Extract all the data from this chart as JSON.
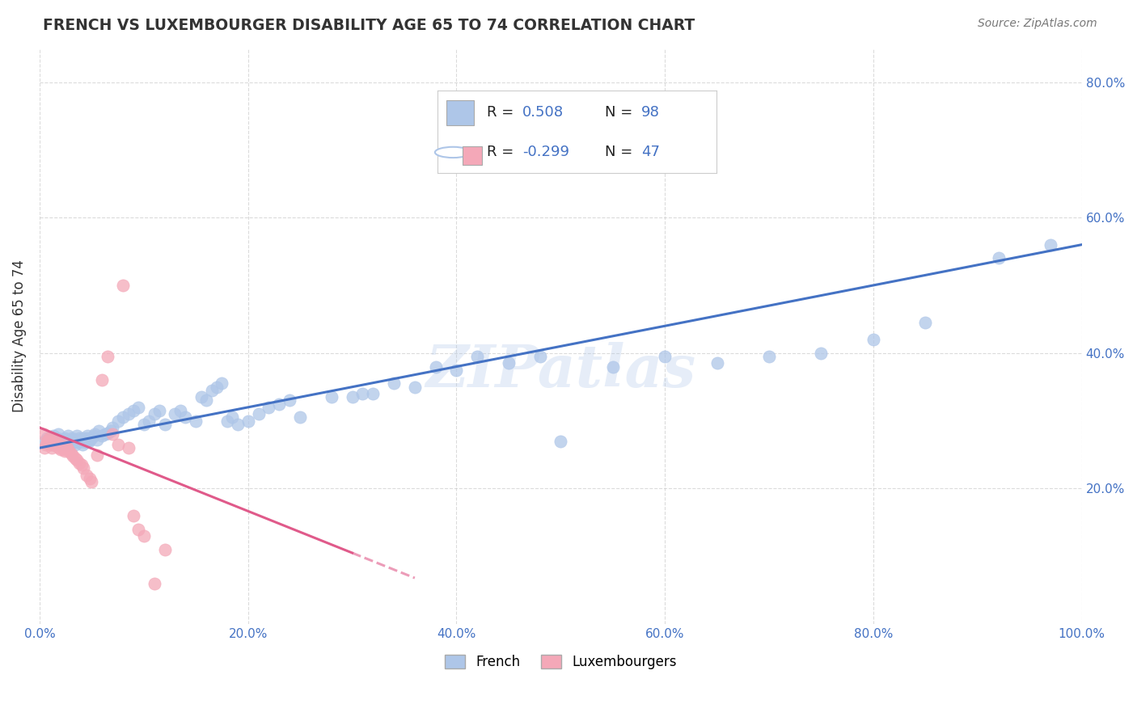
{
  "title": "FRENCH VS LUXEMBOURGER DISABILITY AGE 65 TO 74 CORRELATION CHART",
  "source": "Source: ZipAtlas.com",
  "ylabel": "Disability Age 65 to 74",
  "french_R": 0.508,
  "french_N": 98,
  "lux_R": -0.299,
  "lux_N": 47,
  "xlim": [
    0.0,
    1.0
  ],
  "ylim": [
    0.0,
    0.85
  ],
  "xticks": [
    0.0,
    0.2,
    0.4,
    0.6,
    0.8,
    1.0
  ],
  "yticks": [
    0.2,
    0.4,
    0.6,
    0.8
  ],
  "xticklabels": [
    "0.0%",
    "20.0%",
    "40.0%",
    "60.0%",
    "80.0%",
    "100.0%"
  ],
  "yticklabels_right": [
    "20.0%",
    "40.0%",
    "60.0%",
    "80.0%"
  ],
  "french_color": "#aec6e8",
  "lux_color": "#f4a8b8",
  "lux_circle_edge": "#aec6e8",
  "french_line_color": "#4472c4",
  "lux_line_color": "#e05a8a",
  "background_color": "#ffffff",
  "grid_color": "#cccccc",
  "watermark": "ZIPatlas",
  "tick_color": "#4472c4",
  "french_scatter_x": [
    0.005,
    0.007,
    0.009,
    0.01,
    0.012,
    0.013,
    0.015,
    0.016,
    0.017,
    0.018,
    0.019,
    0.02,
    0.022,
    0.023,
    0.024,
    0.025,
    0.026,
    0.027,
    0.028,
    0.029,
    0.03,
    0.031,
    0.032,
    0.033,
    0.034,
    0.035,
    0.036,
    0.037,
    0.038,
    0.039,
    0.04,
    0.041,
    0.042,
    0.043,
    0.044,
    0.045,
    0.046,
    0.047,
    0.048,
    0.05,
    0.052,
    0.053,
    0.055,
    0.057,
    0.06,
    0.063,
    0.065,
    0.068,
    0.07,
    0.075,
    0.08,
    0.085,
    0.09,
    0.095,
    0.1,
    0.105,
    0.11,
    0.115,
    0.12,
    0.13,
    0.135,
    0.14,
    0.15,
    0.155,
    0.16,
    0.165,
    0.17,
    0.175,
    0.18,
    0.185,
    0.19,
    0.2,
    0.21,
    0.22,
    0.23,
    0.24,
    0.25,
    0.28,
    0.3,
    0.31,
    0.32,
    0.34,
    0.36,
    0.38,
    0.4,
    0.42,
    0.45,
    0.48,
    0.5,
    0.55,
    0.6,
    0.65,
    0.7,
    0.75,
    0.8,
    0.85,
    0.92,
    0.97
  ],
  "french_scatter_y": [
    0.27,
    0.275,
    0.272,
    0.268,
    0.265,
    0.278,
    0.272,
    0.268,
    0.275,
    0.28,
    0.265,
    0.27,
    0.272,
    0.268,
    0.275,
    0.265,
    0.272,
    0.278,
    0.265,
    0.27,
    0.268,
    0.275,
    0.272,
    0.268,
    0.265,
    0.272,
    0.278,
    0.268,
    0.275,
    0.272,
    0.27,
    0.265,
    0.275,
    0.272,
    0.268,
    0.275,
    0.278,
    0.27,
    0.272,
    0.275,
    0.278,
    0.28,
    0.272,
    0.285,
    0.278,
    0.28,
    0.282,
    0.285,
    0.29,
    0.3,
    0.305,
    0.31,
    0.315,
    0.32,
    0.295,
    0.3,
    0.31,
    0.315,
    0.295,
    0.31,
    0.315,
    0.305,
    0.3,
    0.335,
    0.33,
    0.345,
    0.35,
    0.355,
    0.3,
    0.305,
    0.295,
    0.3,
    0.31,
    0.32,
    0.325,
    0.33,
    0.305,
    0.335,
    0.335,
    0.34,
    0.34,
    0.355,
    0.35,
    0.38,
    0.375,
    0.395,
    0.385,
    0.395,
    0.27,
    0.38,
    0.395,
    0.385,
    0.395,
    0.4,
    0.42,
    0.445,
    0.54,
    0.56
  ],
  "lux_scatter_x": [
    0.004,
    0.005,
    0.006,
    0.007,
    0.008,
    0.009,
    0.01,
    0.011,
    0.012,
    0.013,
    0.014,
    0.015,
    0.016,
    0.017,
    0.018,
    0.019,
    0.02,
    0.021,
    0.022,
    0.023,
    0.024,
    0.025,
    0.026,
    0.027,
    0.028,
    0.03,
    0.032,
    0.034,
    0.036,
    0.038,
    0.04,
    0.042,
    0.045,
    0.048,
    0.05,
    0.055,
    0.06,
    0.065,
    0.07,
    0.075,
    0.08,
    0.085,
    0.09,
    0.095,
    0.1,
    0.11,
    0.12
  ],
  "lux_scatter_y": [
    0.28,
    0.26,
    0.265,
    0.27,
    0.268,
    0.275,
    0.272,
    0.265,
    0.26,
    0.268,
    0.272,
    0.265,
    0.262,
    0.268,
    0.265,
    0.26,
    0.258,
    0.265,
    0.262,
    0.258,
    0.255,
    0.26,
    0.262,
    0.258,
    0.255,
    0.252,
    0.248,
    0.245,
    0.242,
    0.238,
    0.235,
    0.23,
    0.22,
    0.215,
    0.21,
    0.25,
    0.36,
    0.395,
    0.28,
    0.265,
    0.5,
    0.26,
    0.16,
    0.14,
    0.13,
    0.06,
    0.11
  ],
  "french_line_x0": 0.0,
  "french_line_x1": 1.0,
  "french_line_y0": 0.26,
  "french_line_y1": 0.56,
  "lux_line_x0": 0.0,
  "lux_line_x1": 0.3,
  "lux_line_y0": 0.29,
  "lux_line_y1": 0.105,
  "lux_line_dash_x0": 0.3,
  "lux_line_dash_x1": 0.36,
  "lux_line_dash_y0": 0.105,
  "lux_line_dash_y1": 0.068
}
